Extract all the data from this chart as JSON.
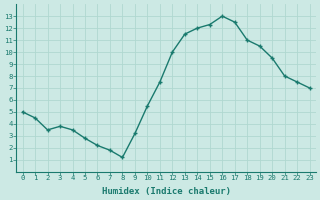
{
  "x": [
    0,
    1,
    2,
    3,
    4,
    5,
    6,
    7,
    8,
    9,
    10,
    11,
    12,
    13,
    14,
    15,
    16,
    17,
    18,
    19,
    20,
    21,
    22,
    23
  ],
  "y": [
    5.0,
    4.5,
    3.5,
    3.8,
    3.5,
    2.8,
    2.2,
    1.8,
    1.2,
    3.2,
    5.5,
    7.5,
    10.0,
    11.5,
    12.0,
    12.3,
    13.0,
    12.5,
    11.0,
    10.5,
    9.5,
    8.0,
    7.5,
    7.0
  ],
  "xlabel": "Humidex (Indice chaleur)",
  "ylim": [
    0,
    14
  ],
  "xlim": [
    -0.5,
    23.5
  ],
  "yticks": [
    1,
    2,
    3,
    4,
    5,
    6,
    7,
    8,
    9,
    10,
    11,
    12,
    13
  ],
  "xticks": [
    0,
    1,
    2,
    3,
    4,
    5,
    6,
    7,
    8,
    9,
    10,
    11,
    12,
    13,
    14,
    15,
    16,
    17,
    18,
    19,
    20,
    21,
    22,
    23
  ],
  "line_color": "#1a7a6e",
  "marker": "+",
  "bg_color": "#cce9e4",
  "grid_color": "#b0d8d0",
  "label_color": "#1a7a6e",
  "font_family": "monospace",
  "tick_fontsize": 5.2,
  "xlabel_fontsize": 6.5
}
